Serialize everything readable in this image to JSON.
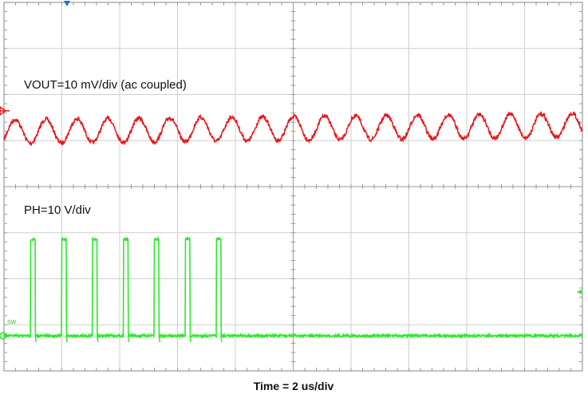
{
  "chart_data": {
    "type": "line",
    "title": "",
    "xlabel": "Time = 2 us/div",
    "ylabel": "",
    "x_unit": "us",
    "xlim": [
      0,
      20
    ],
    "x_divisions": 10,
    "y_divisions": 8,
    "grid": true,
    "series": [
      {
        "name": "VOUT=10 mV/div (ac coupled)",
        "color": "#e8161a",
        "unit": "mV",
        "scale_per_div": 10,
        "coupling": "ac",
        "waveform": "triangle-like ripple",
        "period_us": 1.07,
        "trough_times_us": [
          0.92,
          1.99,
          3.06,
          4.13,
          5.2,
          6.27,
          7.34,
          8.41
        ],
        "peak_to_peak_mV": 12
      },
      {
        "name": "PH=10 V/div",
        "color": "#2ee82e",
        "unit": "V",
        "scale_per_div": 10,
        "waveform": "pulse",
        "pulse_start_times_us": [
          0.92,
          1.99,
          3.06,
          4.13,
          5.2,
          6.27,
          7.34
        ],
        "pulse_width_us": 0.16,
        "high_level_V": 25,
        "low_level_V": 0
      }
    ],
    "channel_markers": {
      "trigger_marker_color": "#1e6ee8",
      "ch1_marker_color": "#e8161a",
      "ch2_marker_color": "#2ee82e",
      "ch2_marker_label": "SW"
    }
  }
}
